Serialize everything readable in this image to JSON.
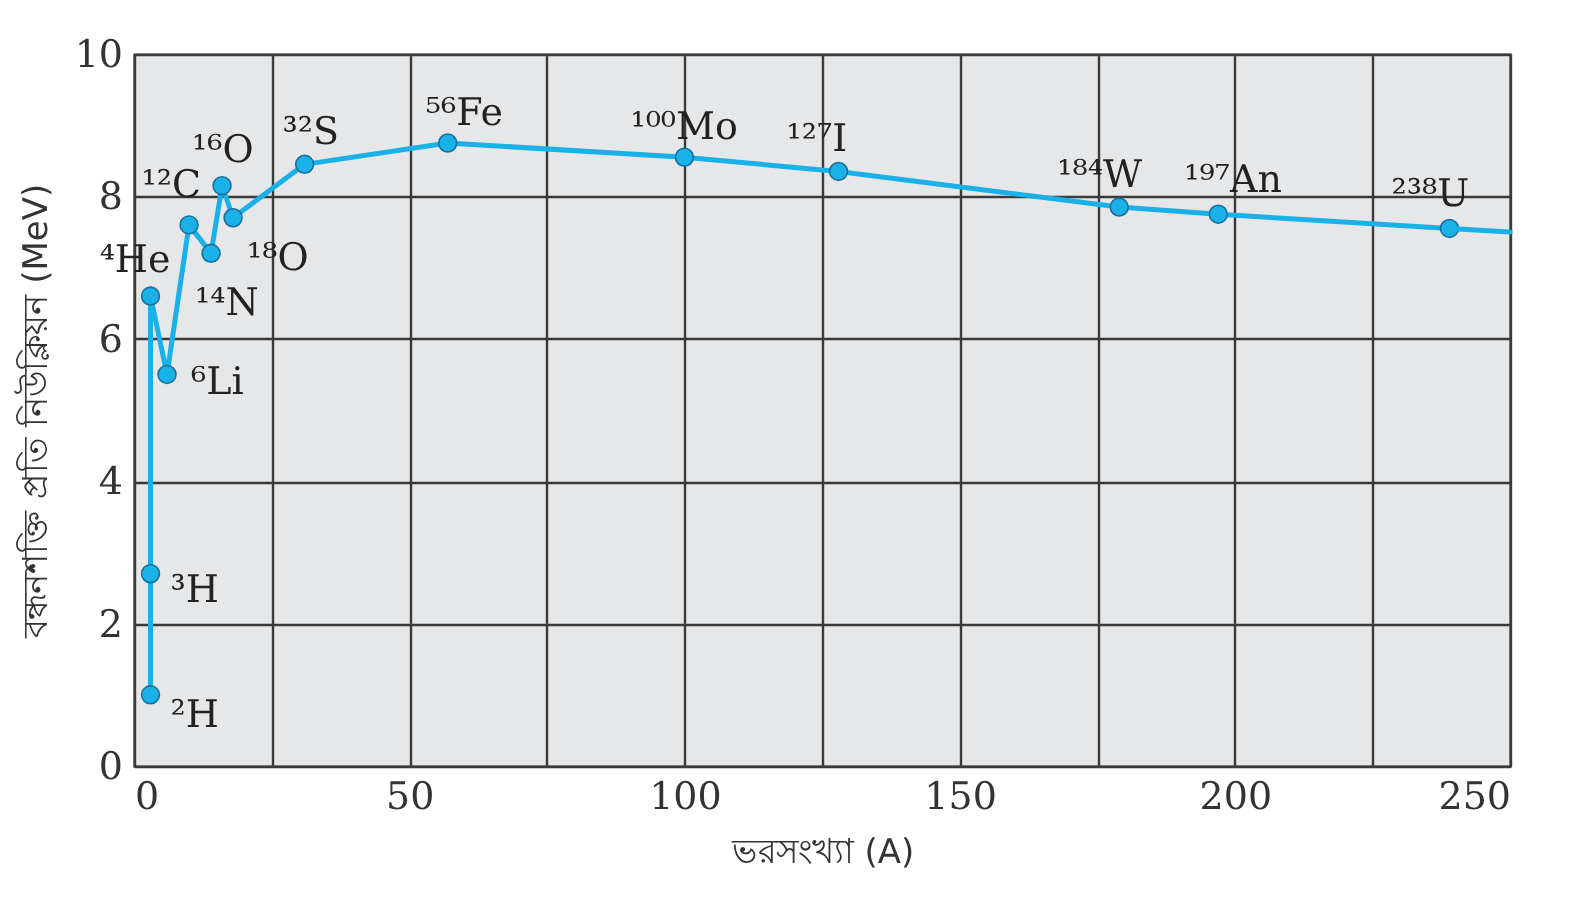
{
  "chart_data": {
    "type": "line",
    "xlabel": "ভরসংখ্যা (A)",
    "ylabel": "বন্ধনশক্তি প্রতি নিউক্লিয়ন (MeV)",
    "xlim": [
      0,
      250
    ],
    "xticks": [
      0,
      {
        "value": 25,
        "label": null
      },
      50,
      {
        "value": 75,
        "label": null
      },
      100,
      {
        "value": 125,
        "label": null
      },
      150,
      {
        "value": 175,
        "label": null
      },
      200,
      {
        "value": 225,
        "label": null
      },
      250
    ],
    "ylim": [
      0,
      10
    ],
    "yticks": [
      0,
      2,
      4,
      6,
      8,
      10
    ],
    "grid": true,
    "marker": "circle",
    "line_style": "solid",
    "series": [
      {
        "color": "#1ab0e8",
        "x": [
          3,
          3,
          3,
          6,
          10,
          14,
          16,
          18,
          31,
          57,
          100,
          128,
          179,
          197,
          239
        ],
        "values": [
          1.0,
          2.7,
          6.6,
          5.5,
          7.6,
          7.2,
          8.15,
          7.7,
          8.45,
          8.75,
          8.55,
          8.35,
          7.85,
          7.75,
          7.55
        ]
      },
      {
        "type": "line",
        "marker": "none",
        "color": "#1ab0e8",
        "x": [
          239,
          250
        ],
        "values": [
          7.55,
          7.5
        ]
      }
    ],
    "annotations": [
      {
        "text": "²H",
        "x": 3,
        "y": 1.0
      },
      {
        "text": "³H",
        "x": 3,
        "y": 2.7
      },
      {
        "text": "⁴He",
        "x": 3,
        "y": 6.6
      },
      {
        "text": "⁶Li",
        "x": 6,
        "y": 5.5
      },
      {
        "text": "¹²C",
        "x": 10,
        "y": 7.6
      },
      {
        "text": "¹⁴N",
        "x": 14,
        "y": 7.2
      },
      {
        "text": "¹⁶O",
        "x": 16,
        "y": 8.15
      },
      {
        "text": "¹⁸O",
        "x": 18,
        "y": 7.7
      },
      {
        "text": "³²S",
        "x": 31,
        "y": 8.45
      },
      {
        "text": "⁵⁶Fe",
        "x": 57,
        "y": 8.75
      },
      {
        "text": "¹⁰⁰Mo",
        "x": 100,
        "y": 8.55
      },
      {
        "text": "¹²⁷I",
        "x": 128,
        "y": 8.35
      },
      {
        "text": "¹⁸⁴W",
        "x": 179,
        "y": 7.85
      },
      {
        "text": "¹⁹⁷An",
        "x": 197,
        "y": 7.75
      },
      {
        "text": "²³⁸U",
        "x": 239,
        "y": 7.55
      }
    ]
  }
}
